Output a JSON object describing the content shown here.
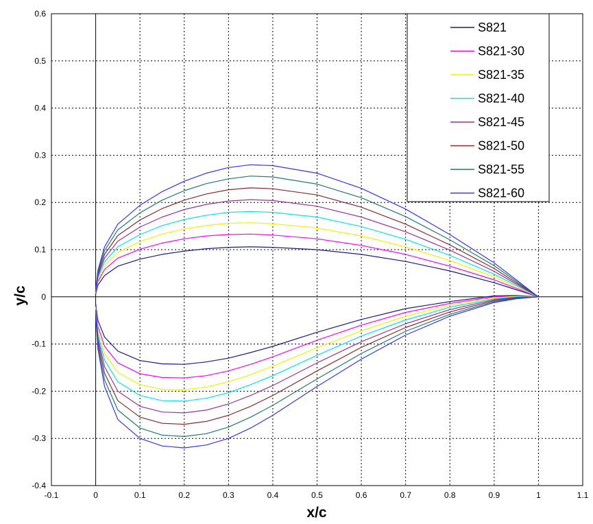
{
  "chart_data": {
    "type": "line",
    "title": "",
    "xlabel": "x/c",
    "ylabel": "y/c",
    "xlim": [
      -0.1,
      1.1
    ],
    "ylim": [
      -0.4,
      0.6
    ],
    "xticks": [
      -0.1,
      0,
      0.1,
      0.2,
      0.3,
      0.4,
      0.5,
      0.6,
      0.7,
      0.8,
      0.9,
      1,
      1.1
    ],
    "yticks": [
      -0.4,
      -0.3,
      -0.2,
      -0.1,
      0,
      0.1,
      0.2,
      0.3,
      0.4,
      0.5,
      0.6
    ],
    "xtick_labels": [
      "-0.1",
      "0",
      "0.1",
      "0.2",
      "0.3",
      "0.4",
      "0.5",
      "0.6",
      "0.7",
      "0.8",
      "0.9",
      "1",
      "1.1"
    ],
    "ytick_labels": [
      "-0.4",
      "-0.3",
      "-0.2",
      "-0.1",
      "0",
      "0.1",
      "0.2",
      "0.3",
      "0.4",
      "0.5",
      "0.6"
    ],
    "grid": true,
    "legend_position": "top-right",
    "x": [
      0,
      0.005,
      0.02,
      0.05,
      0.1,
      0.15,
      0.2,
      0.25,
      0.3,
      0.35,
      0.4,
      0.5,
      0.6,
      0.7,
      0.8,
      0.9,
      0.95,
      1.0
    ],
    "series": [
      {
        "name": "S821",
        "color": "#1a1a8c",
        "upper": [
          0.005,
          0.025,
          0.045,
          0.065,
          0.08,
          0.09,
          0.097,
          0.102,
          0.105,
          0.106,
          0.105,
          0.1,
          0.09,
          0.075,
          0.055,
          0.03,
          0.015,
          0.0
        ],
        "lower": [
          -0.015,
          -0.05,
          -0.085,
          -0.115,
          -0.135,
          -0.142,
          -0.143,
          -0.138,
          -0.13,
          -0.118,
          -0.105,
          -0.075,
          -0.048,
          -0.025,
          -0.01,
          0.002,
          0.003,
          0.0
        ]
      },
      {
        "name": "S821-30",
        "color": "#ff00ff",
        "upper": [
          0.007,
          0.032,
          0.058,
          0.082,
          0.101,
          0.114,
          0.123,
          0.129,
          0.132,
          0.133,
          0.131,
          0.123,
          0.109,
          0.09,
          0.065,
          0.036,
          0.018,
          0.0
        ],
        "lower": [
          -0.02,
          -0.062,
          -0.105,
          -0.14,
          -0.163,
          -0.171,
          -0.172,
          -0.167,
          -0.157,
          -0.143,
          -0.127,
          -0.092,
          -0.06,
          -0.033,
          -0.014,
          0.0,
          0.002,
          0.0
        ]
      },
      {
        "name": "S821-35",
        "color": "#f2f200",
        "upper": [
          0.008,
          0.036,
          0.066,
          0.094,
          0.117,
          0.133,
          0.144,
          0.151,
          0.156,
          0.157,
          0.155,
          0.146,
          0.129,
          0.106,
          0.077,
          0.042,
          0.021,
          0.0
        ],
        "lower": [
          -0.022,
          -0.07,
          -0.12,
          -0.16,
          -0.186,
          -0.196,
          -0.197,
          -0.191,
          -0.18,
          -0.165,
          -0.147,
          -0.108,
          -0.072,
          -0.041,
          -0.018,
          -0.002,
          0.001,
          0.0
        ]
      },
      {
        "name": "S821-40",
        "color": "#00e6f0",
        "upper": [
          0.009,
          0.04,
          0.074,
          0.106,
          0.132,
          0.151,
          0.164,
          0.173,
          0.179,
          0.181,
          0.179,
          0.169,
          0.149,
          0.122,
          0.088,
          0.048,
          0.024,
          0.0
        ],
        "lower": [
          -0.025,
          -0.078,
          -0.134,
          -0.18,
          -0.209,
          -0.22,
          -0.221,
          -0.215,
          -0.203,
          -0.186,
          -0.167,
          -0.124,
          -0.083,
          -0.049,
          -0.022,
          -0.004,
          0.0,
          0.0
        ]
      },
      {
        "name": "S821-45",
        "color": "#993399",
        "upper": [
          0.01,
          0.044,
          0.082,
          0.118,
          0.148,
          0.169,
          0.185,
          0.196,
          0.203,
          0.206,
          0.204,
          0.192,
          0.169,
          0.138,
          0.099,
          0.054,
          0.027,
          0.0
        ],
        "lower": [
          -0.028,
          -0.086,
          -0.148,
          -0.2,
          -0.232,
          -0.244,
          -0.246,
          -0.24,
          -0.227,
          -0.209,
          -0.188,
          -0.14,
          -0.095,
          -0.057,
          -0.027,
          -0.006,
          -0.001,
          0.0
        ]
      },
      {
        "name": "S821-50",
        "color": "#8b2a2a",
        "upper": [
          0.011,
          0.048,
          0.09,
          0.13,
          0.163,
          0.187,
          0.205,
          0.218,
          0.227,
          0.231,
          0.229,
          0.216,
          0.19,
          0.154,
          0.11,
          0.06,
          0.03,
          0.0
        ],
        "lower": [
          -0.03,
          -0.094,
          -0.162,
          -0.22,
          -0.255,
          -0.268,
          -0.27,
          -0.264,
          -0.251,
          -0.232,
          -0.209,
          -0.157,
          -0.107,
          -0.065,
          -0.032,
          -0.008,
          -0.002,
          0.0
        ]
      },
      {
        "name": "S821-55",
        "color": "#1f7a6e",
        "upper": [
          0.012,
          0.052,
          0.098,
          0.142,
          0.178,
          0.205,
          0.225,
          0.24,
          0.25,
          0.256,
          0.254,
          0.239,
          0.21,
          0.17,
          0.121,
          0.066,
          0.033,
          0.0
        ],
        "lower": [
          -0.033,
          -0.102,
          -0.176,
          -0.24,
          -0.278,
          -0.293,
          -0.296,
          -0.29,
          -0.276,
          -0.255,
          -0.23,
          -0.174,
          -0.12,
          -0.073,
          -0.037,
          -0.01,
          -0.003,
          0.0
        ]
      },
      {
        "name": "S821-60",
        "color": "#3333ff",
        "upper": [
          0.013,
          0.056,
          0.106,
          0.154,
          0.194,
          0.223,
          0.245,
          0.262,
          0.274,
          0.28,
          0.278,
          0.262,
          0.23,
          0.186,
          0.132,
          0.072,
          0.036,
          0.0
        ],
        "lower": [
          -0.036,
          -0.11,
          -0.19,
          -0.26,
          -0.3,
          -0.316,
          -0.32,
          -0.314,
          -0.3,
          -0.278,
          -0.251,
          -0.19,
          -0.132,
          -0.081,
          -0.041,
          -0.012,
          -0.004,
          0.0
        ]
      }
    ]
  }
}
